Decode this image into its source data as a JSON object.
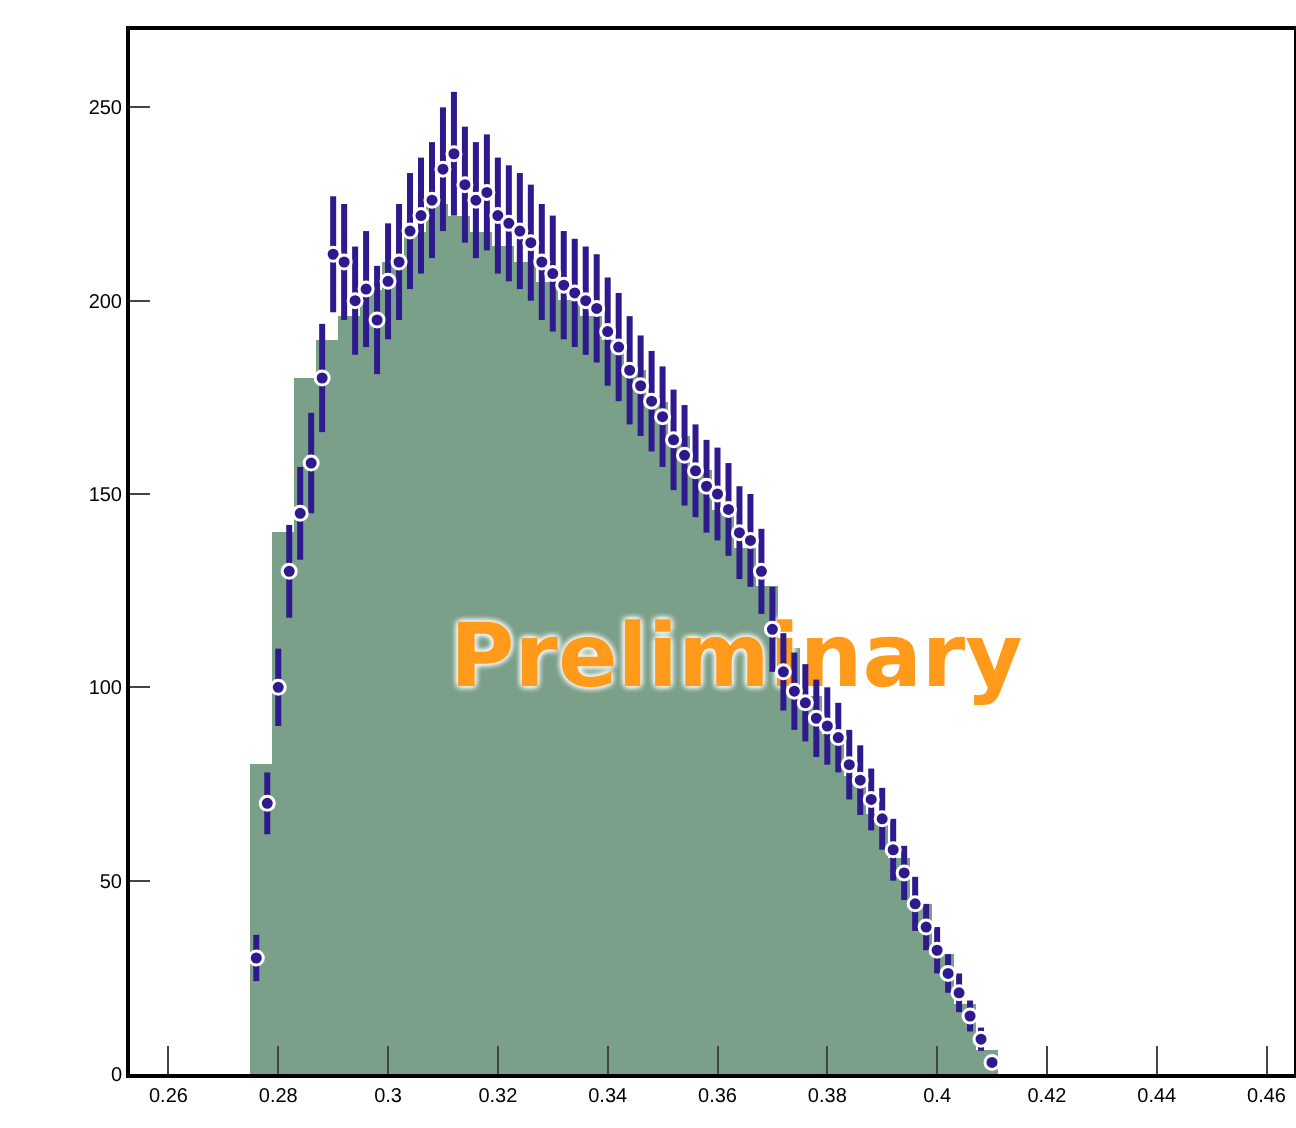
{
  "chart_data": {
    "type": "histogram",
    "annotations": [
      "Preliminary"
    ],
    "bins": [
      0.275,
      0.279,
      0.283,
      0.287,
      0.291,
      0.295,
      0.299,
      0.303,
      0.307,
      0.311,
      0.315,
      0.319,
      0.323,
      0.327,
      0.331,
      0.335,
      0.339,
      0.343,
      0.347,
      0.351,
      0.355,
      0.359,
      0.363,
      0.367,
      0.371,
      0.375,
      0.379,
      0.383,
      0.387,
      0.391,
      0.395,
      0.399,
      0.403,
      0.407,
      0.411
    ],
    "values": [
      80,
      140,
      180,
      190,
      196,
      203,
      210,
      218,
      225,
      222,
      218,
      214,
      210,
      205,
      200,
      196,
      190,
      182,
      174,
      165,
      156,
      146,
      136,
      126,
      110,
      98,
      88,
      77,
      67,
      56,
      44,
      31,
      18,
      6
    ],
    "color": "#7ba08a",
    "series": [
      {
        "type": "scatter",
        "color": "#2e1a8c",
        "x": [
          0.276,
          0.278,
          0.28,
          0.282,
          0.284,
          0.286,
          0.288,
          0.29,
          0.292,
          0.294,
          0.296,
          0.298,
          0.3,
          0.302,
          0.304,
          0.306,
          0.308,
          0.31,
          0.312,
          0.314,
          0.316,
          0.318,
          0.32,
          0.322,
          0.324,
          0.326,
          0.328,
          0.33,
          0.332,
          0.334,
          0.336,
          0.338,
          0.34,
          0.342,
          0.344,
          0.346,
          0.348,
          0.35,
          0.352,
          0.354,
          0.356,
          0.358,
          0.36,
          0.362,
          0.364,
          0.366,
          0.368,
          0.37,
          0.372,
          0.374,
          0.376,
          0.378,
          0.38,
          0.382,
          0.384,
          0.386,
          0.388,
          0.39,
          0.392,
          0.394,
          0.396,
          0.398,
          0.4,
          0.402,
          0.404,
          0.406,
          0.408,
          0.41
        ],
        "values": [
          30,
          70,
          100,
          130,
          145,
          158,
          180,
          212,
          210,
          200,
          203,
          195,
          205,
          210,
          218,
          222,
          226,
          234,
          238,
          230,
          226,
          228,
          222,
          220,
          218,
          215,
          210,
          207,
          204,
          202,
          200,
          198,
          192,
          188,
          182,
          178,
          174,
          170,
          164,
          160,
          156,
          152,
          150,
          146,
          140,
          138,
          130,
          115,
          104,
          99,
          96,
          92,
          90,
          87,
          80,
          76,
          71,
          66,
          58,
          52,
          44,
          38,
          32,
          26,
          21,
          15,
          9,
          3
        ],
        "errors": [
          6,
          8,
          10,
          12,
          12,
          13,
          14,
          15,
          15,
          14,
          15,
          14,
          15,
          15,
          15,
          15,
          15,
          16,
          16,
          15,
          15,
          15,
          15,
          15,
          15,
          15,
          15,
          15,
          14,
          14,
          14,
          14,
          14,
          14,
          14,
          13,
          13,
          13,
          13,
          13,
          12,
          12,
          12,
          12,
          12,
          12,
          11,
          11,
          10,
          10,
          10,
          10,
          10,
          9,
          9,
          9,
          8,
          8,
          8,
          7,
          7,
          6,
          6,
          5,
          5,
          4,
          3,
          2
        ]
      }
    ],
    "marker": "circle",
    "xlim": [
      0.253,
      0.465
    ],
    "xticks": [
      0.26,
      0.28,
      0.3,
      0.32,
      0.34,
      0.36,
      0.38,
      0.4,
      0.42,
      0.44,
      0.46
    ],
    "ylim": [
      0,
      270
    ],
    "yticks": [
      0,
      50,
      100,
      150,
      200,
      250
    ],
    "grid": false
  }
}
